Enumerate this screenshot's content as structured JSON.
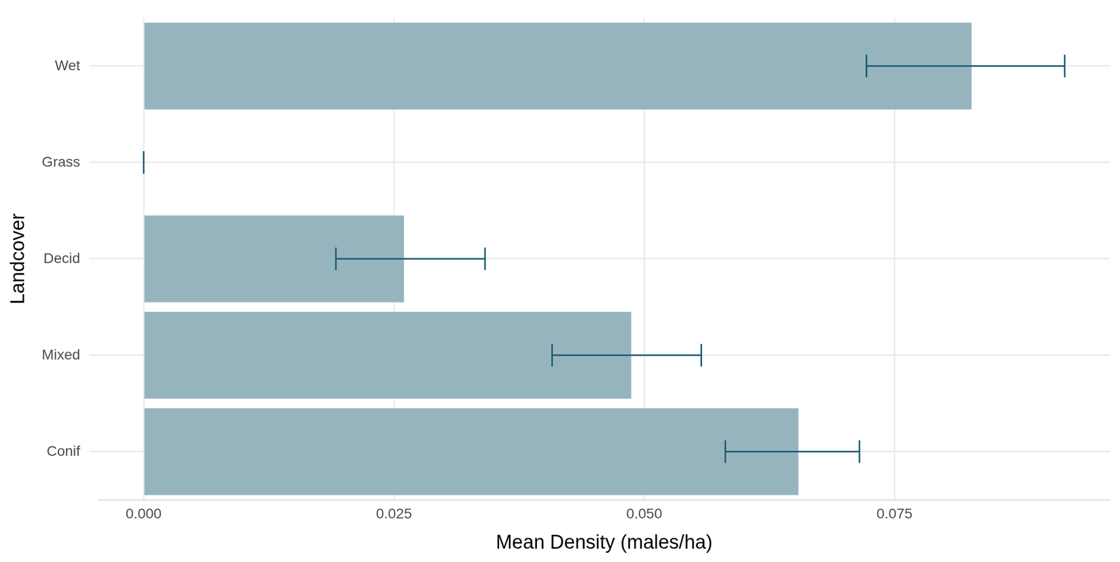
{
  "chart_data": {
    "type": "bar",
    "orientation": "horizontal",
    "x_label": "Mean Density (males/ha)",
    "y_label": "Landcover",
    "categories": [
      "Wet",
      "Grass",
      "Decid",
      "Mixed",
      "Conif"
    ],
    "values": [
      0.0827,
      0.0,
      0.026,
      0.0487,
      0.0654
    ],
    "error_low": [
      0.0722,
      0.0,
      0.0192,
      0.0408,
      0.0581
    ],
    "error_high": [
      0.092,
      0.0,
      0.0341,
      0.0557,
      0.0715
    ],
    "color": "#96b4be",
    "error_color": "#1a5a72",
    "xlim": [
      -0.0045,
      0.0965
    ],
    "xticks": [
      {
        "value": 0,
        "label": "0.000"
      },
      {
        "value": 0.025,
        "label": "0.025"
      },
      {
        "value": 0.05,
        "label": "0.050"
      },
      {
        "value": 0.075,
        "label": "0.075"
      }
    ],
    "grid": true
  }
}
